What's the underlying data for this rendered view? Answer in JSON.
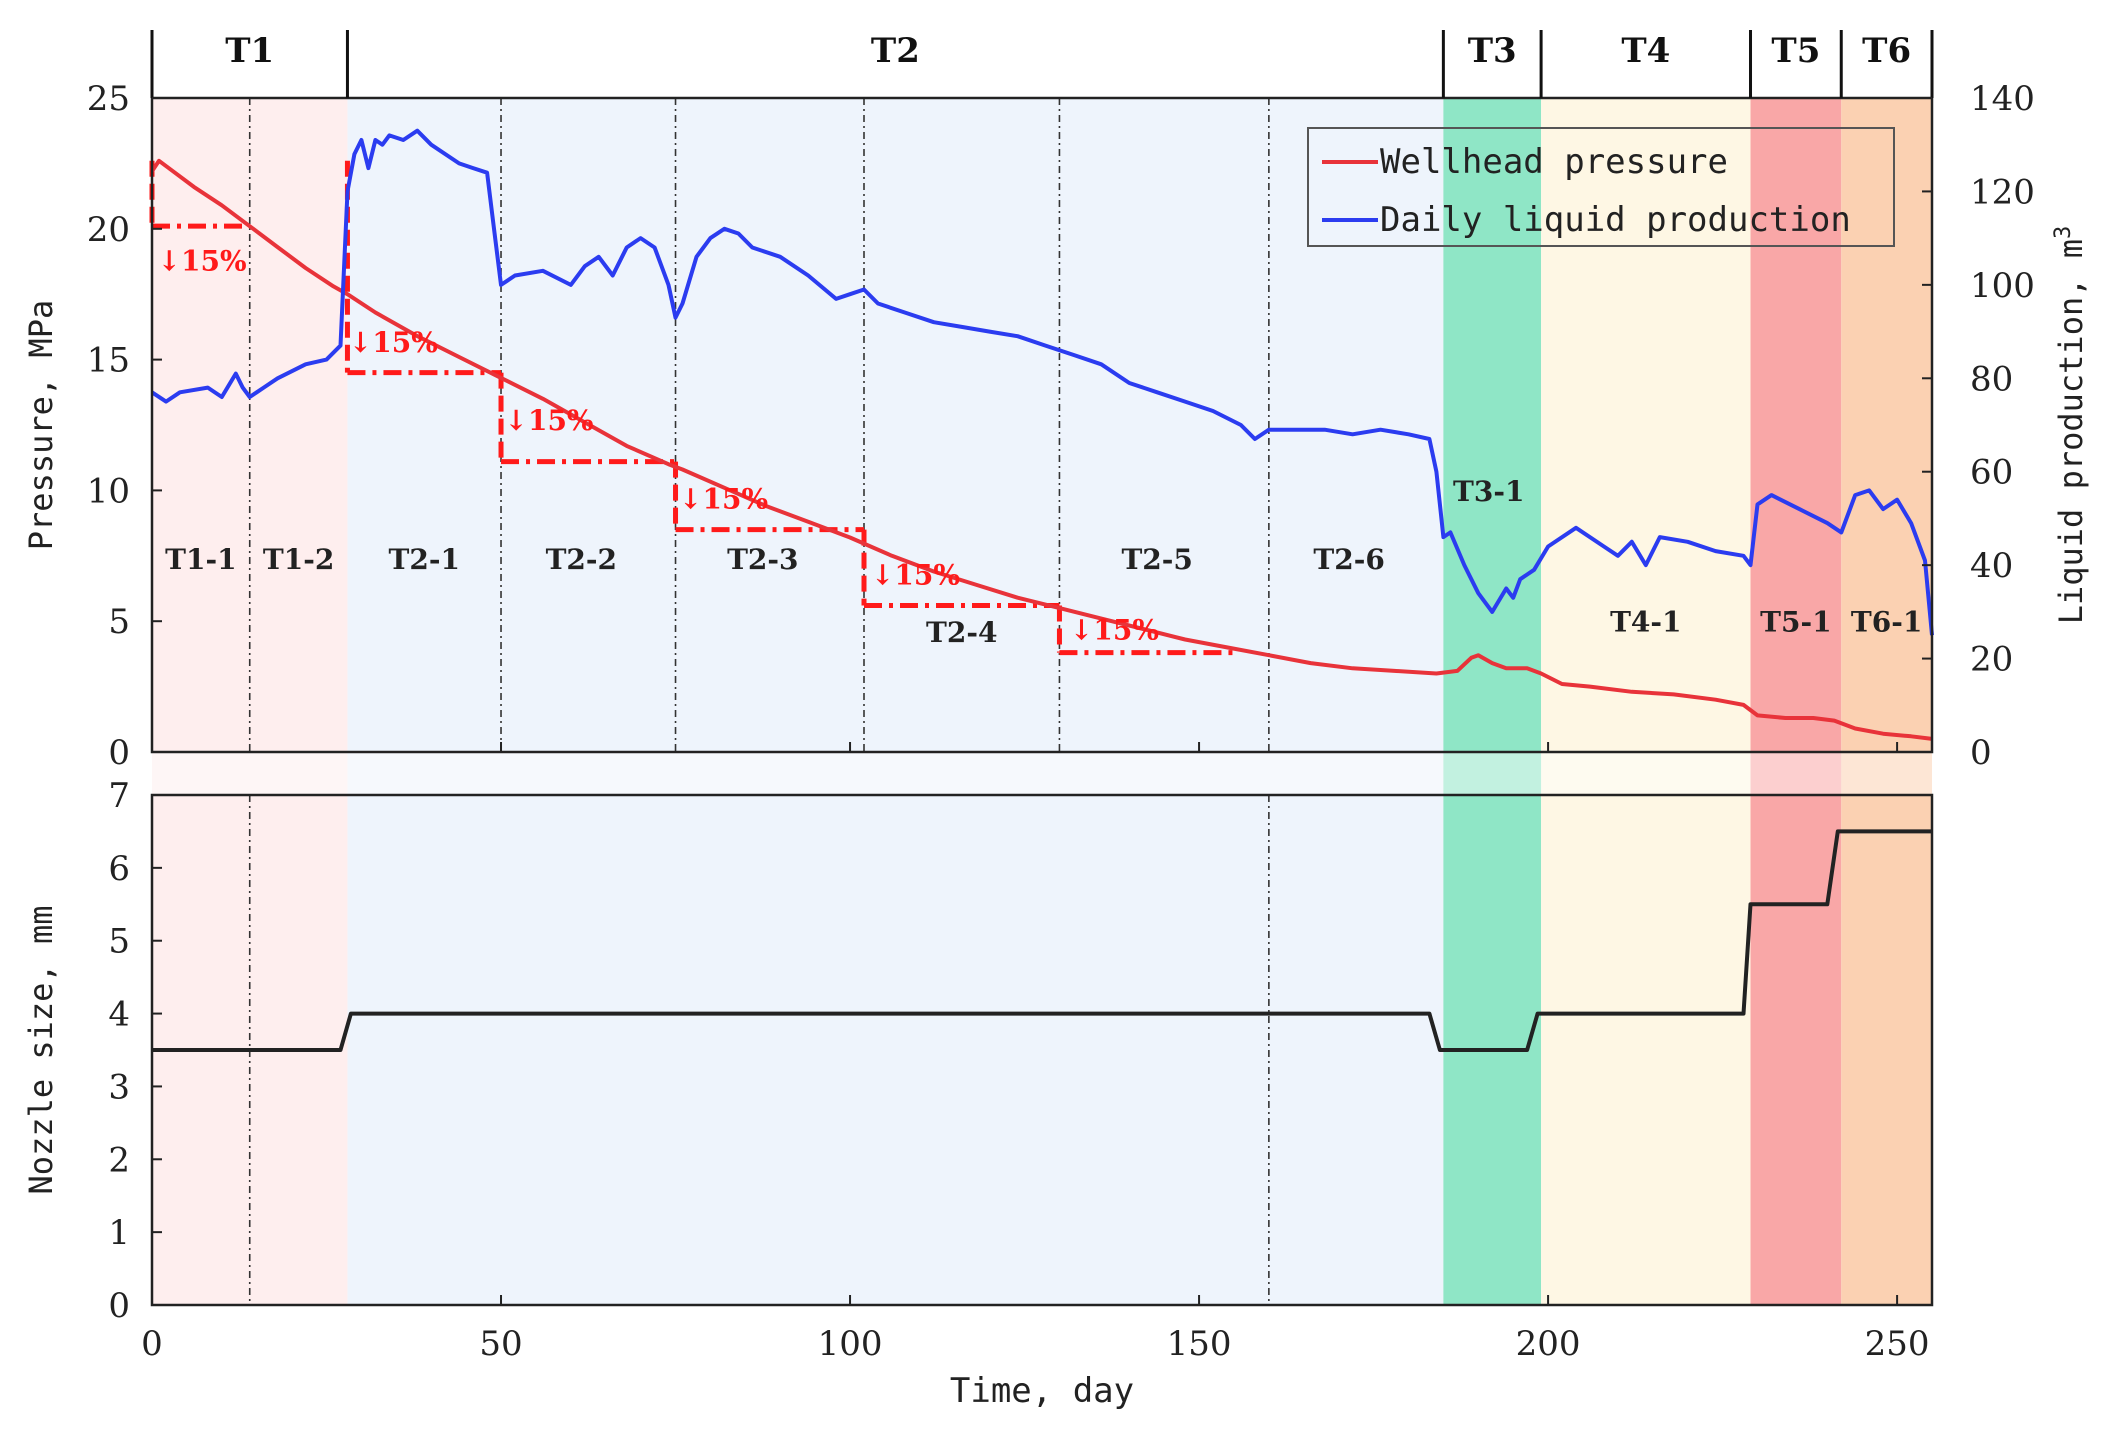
{
  "chart_data": [
    {
      "type": "line",
      "panel": "upper",
      "xlabel": "",
      "ylabel": "Pressure, MPa",
      "ylabel_right": "Liquid production, m3",
      "x_ticks": [
        0,
        50,
        100,
        150,
        200,
        250
      ],
      "y_ticks": [
        0,
        5,
        10,
        15,
        20,
        25
      ],
      "y_right_ticks": [
        0,
        20,
        40,
        60,
        80,
        100,
        120,
        140
      ],
      "xlim": [
        0,
        255
      ],
      "ylim": [
        0,
        25
      ],
      "y_right_lim": [
        0,
        140
      ],
      "grid": false,
      "legend_position": "top-right",
      "series": [
        {
          "name": "Wellhead pressure",
          "axis": "left",
          "color": "#e8333a",
          "x": [
            0,
            1,
            3,
            6,
            10,
            14,
            18,
            22,
            26,
            28,
            32,
            38,
            44,
            50,
            56,
            62,
            68,
            74,
            76,
            82,
            88,
            94,
            100,
            106,
            112,
            118,
            124,
            130,
            136,
            142,
            148,
            154,
            160,
            166,
            172,
            178,
            184,
            187,
            189,
            190,
            192,
            194,
            197,
            199,
            202,
            206,
            212,
            218,
            224,
            228,
            230,
            234,
            238,
            241,
            244,
            248,
            252,
            255
          ],
          "y": [
            22.2,
            22.6,
            22.2,
            21.6,
            20.9,
            20.1,
            19.3,
            18.5,
            17.8,
            17.5,
            16.8,
            15.9,
            15.1,
            14.3,
            13.5,
            12.6,
            11.7,
            11.0,
            10.8,
            10.1,
            9.4,
            8.8,
            8.2,
            7.5,
            6.9,
            6.4,
            5.9,
            5.5,
            5.1,
            4.7,
            4.3,
            4.0,
            3.7,
            3.4,
            3.2,
            3.1,
            3.0,
            3.1,
            3.6,
            3.7,
            3.4,
            3.2,
            3.2,
            3.0,
            2.6,
            2.5,
            2.3,
            2.2,
            2.0,
            1.8,
            1.4,
            1.3,
            1.3,
            1.2,
            0.9,
            0.7,
            0.6,
            0.5
          ]
        },
        {
          "name": "Daily liquid production",
          "axis": "right",
          "color": "#2b3cf0",
          "x": [
            0,
            2,
            4,
            8,
            10,
            12,
            13,
            14,
            15,
            16,
            18,
            22,
            25,
            27,
            28,
            29,
            30,
            31,
            32,
            33,
            34,
            36,
            38,
            40,
            44,
            46,
            48,
            49,
            50,
            52,
            56,
            60,
            62,
            64,
            66,
            68,
            70,
            72,
            74,
            75,
            76,
            78,
            80,
            82,
            84,
            86,
            90,
            94,
            98,
            100,
            102,
            104,
            108,
            112,
            116,
            120,
            124,
            128,
            132,
            136,
            140,
            144,
            148,
            152,
            156,
            158,
            160,
            164,
            168,
            172,
            176,
            180,
            183,
            184,
            185,
            186,
            188,
            190,
            192,
            194,
            195,
            196,
            198,
            200,
            204,
            208,
            210,
            212,
            214,
            216,
            220,
            224,
            228,
            229,
            230,
            232,
            236,
            240,
            242,
            244,
            246,
            248,
            250,
            252,
            254,
            255
          ],
          "y": [
            77,
            75,
            77,
            78,
            76,
            81,
            78,
            76,
            77,
            78,
            80,
            83,
            84,
            87,
            120,
            128,
            131,
            125,
            131,
            130,
            132,
            131,
            133,
            130,
            126,
            125,
            124,
            112,
            100,
            102,
            103,
            100,
            104,
            106,
            102,
            108,
            110,
            108,
            100,
            93,
            96,
            106,
            110,
            112,
            111,
            108,
            106,
            102,
            97,
            98,
            99,
            96,
            94,
            92,
            91,
            90,
            89,
            87,
            85,
            83,
            79,
            77,
            75,
            73,
            70,
            67,
            69,
            69,
            69,
            68,
            69,
            68,
            67,
            60,
            46,
            47,
            40,
            34,
            30,
            35,
            33,
            37,
            39,
            44,
            48,
            44,
            42,
            45,
            40,
            46,
            45,
            43,
            42,
            40,
            53,
            55,
            52,
            49,
            47,
            55,
            56,
            52,
            54,
            49,
            41,
            25
          ]
        }
      ],
      "stage_labels": [
        "T1",
        "T2",
        "T3",
        "T4",
        "T5",
        "T6"
      ],
      "stage_bounds": [
        [
          0,
          28
        ],
        [
          28,
          185
        ],
        [
          185,
          199
        ],
        [
          199,
          229
        ],
        [
          229,
          242
        ],
        [
          242,
          255
        ]
      ],
      "substage_labels": [
        "T1-1",
        "T1-2",
        "T2-1",
        "T2-2",
        "T2-3",
        "T2-4",
        "T2-5",
        "T2-6",
        "T3-1",
        "T4-1",
        "T5-1",
        "T6-1"
      ],
      "drop_annotation": "↓15%",
      "drop_steps": [
        {
          "x0": 0,
          "x1": 14,
          "from": 22.6,
          "to": 20.1
        },
        {
          "x0": 28,
          "x1": 50,
          "from": 22.6,
          "to": 14.5
        },
        {
          "x0": 50,
          "x1": 75,
          "from": 14.5,
          "to": 11.1
        },
        {
          "x0": 75,
          "x1": 102,
          "from": 11.1,
          "to": 8.5
        },
        {
          "x0": 102,
          "x1": 130,
          "from": 8.5,
          "to": 5.6
        },
        {
          "x0": 130,
          "x1": 155,
          "from": 5.6,
          "to": 3.8
        }
      ]
    },
    {
      "type": "line",
      "panel": "lower",
      "xlabel": "Time, day",
      "ylabel": "Nozzle size, mm",
      "x_ticks": [
        0,
        50,
        100,
        150,
        200,
        250
      ],
      "y_ticks": [
        0,
        1,
        2,
        3,
        4,
        5,
        6,
        7
      ],
      "xlim": [
        0,
        255
      ],
      "ylim": [
        0,
        7
      ],
      "series": [
        {
          "name": "",
          "color": "#222222",
          "x": [
            0,
            27,
            28.5,
            183,
            184.5,
            197,
            198.5,
            228,
            229,
            240,
            241.5,
            255
          ],
          "y": [
            3.5,
            3.5,
            4.0,
            4.0,
            3.5,
            3.5,
            4.0,
            4.0,
            5.5,
            5.5,
            6.5,
            6.5
          ]
        }
      ]
    }
  ]
}
